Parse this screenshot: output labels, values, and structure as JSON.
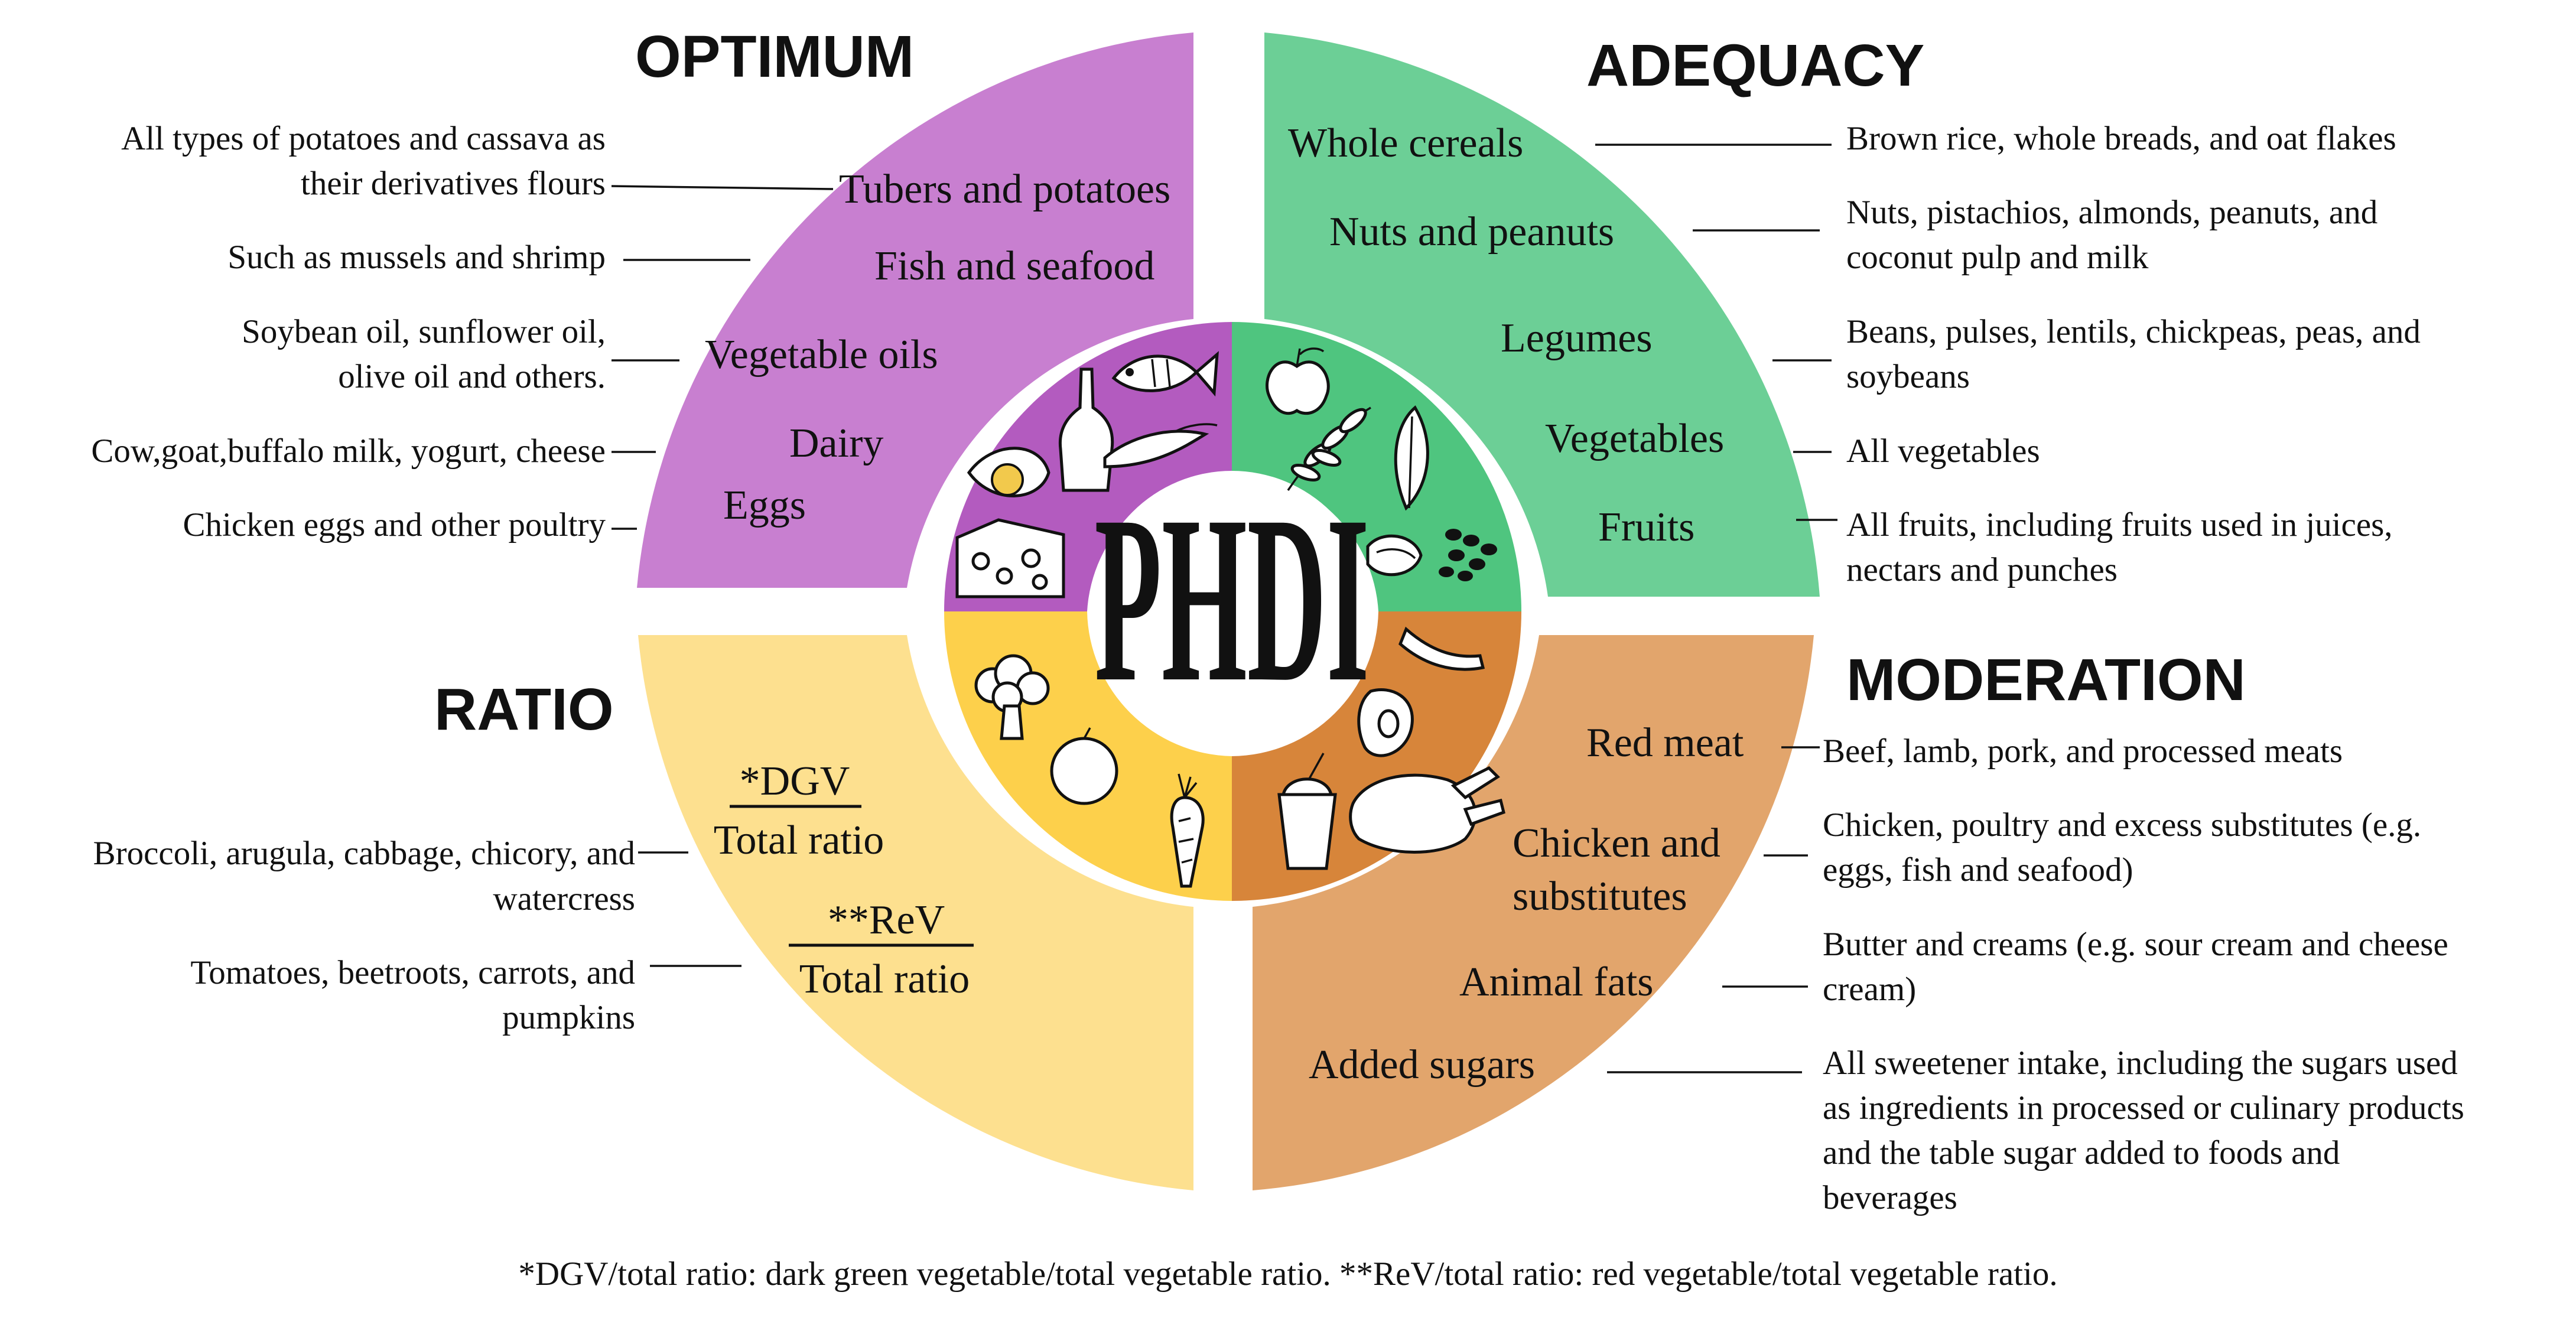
{
  "center": {
    "title": "PHDI"
  },
  "colors": {
    "optimum_outer": "#c87fd0",
    "optimum_inner": "#b35bbf",
    "adequacy_outer": "#6ccf96",
    "adequacy_inner": "#4fc57f",
    "moderation_outer": "#e2a56c",
    "moderation_inner": "#d7853a",
    "ratio_outer": "#fde08f",
    "ratio_inner": "#fdd04b"
  },
  "optimum": {
    "title": "OPTIMUM",
    "categories": [
      "Tubers and potatoes",
      "Fish and seafood",
      "Vegetable oils",
      "Dairy",
      "Eggs"
    ],
    "notes": {
      "tubers_1": "All types of potatoes and cassava as",
      "tubers_2": "their derivatives flours",
      "fish": "Such as mussels and shrimp",
      "oils_1": "Soybean oil, sunflower oil,",
      "oils_2": "olive oil and others.",
      "dairy": "Cow,goat,buffalo milk, yogurt, cheese",
      "eggs": "Chicken eggs and other poultry"
    }
  },
  "adequacy": {
    "title": "ADEQUACY",
    "categories": [
      "Whole cereals",
      "Nuts and peanuts",
      "Legumes",
      "Vegetables",
      "Fruits"
    ],
    "notes": {
      "cereals": "Brown rice, whole breads, and oat flakes",
      "nuts_1": "Nuts, pistachios, almonds, peanuts, and",
      "nuts_2": "coconut pulp and milk",
      "legumes_1": "Beans, pulses, lentils, chickpeas, peas, and",
      "legumes_2": "soybeans",
      "vegetables": "All vegetables",
      "fruits_1": "All fruits, including fruits used in juices,",
      "fruits_2": "nectars and punches"
    }
  },
  "moderation": {
    "title": "MODERATION",
    "categories": [
      "Red meat",
      "Chicken and",
      "substitutes",
      "Animal fats",
      "Added sugars"
    ],
    "notes": {
      "redmeat": "Beef, lamb, pork, and processed meats",
      "chicken_1": "Chicken, poultry and excess substitutes (e.g.",
      "chicken_2": "eggs, fish and seafood)",
      "fats_1": "Butter and creams (e.g. sour cream and cheese",
      "fats_2": "cream)",
      "sugars_1": "All sweetener intake, including the sugars used",
      "sugars_2": "as ingredients in processed or culinary products",
      "sugars_3": "and the table sugar added to foods and",
      "sugars_4": "beverages"
    }
  },
  "ratio": {
    "title": "RATIO",
    "dgv_num": "*DGV",
    "dgv_den": "Total ratio",
    "rev_num": "**ReV",
    "rev_den": "Total ratio",
    "notes": {
      "dgv_1": "Broccoli, arugula, cabbage, chicory, and",
      "dgv_2": "watercress",
      "rev_1": "Tomatoes, beetroots, carrots, and",
      "rev_2": "pumpkins"
    }
  },
  "footnote": "*DGV/total ratio: dark green vegetable/total vegetable ratio. **ReV/total ratio: red vegetable/total vegetable ratio.",
  "icons": [
    "fish-icon",
    "bottle-icon",
    "shrimp-icon",
    "egg-icon",
    "cheese-icon",
    "apple-icon",
    "wheat-icon",
    "leaf-icon",
    "nut-icon",
    "beans-icon",
    "sausage-icon",
    "steak-icon",
    "chicken-icon",
    "drink-icon",
    "broccoli-icon",
    "tomato-icon",
    "carrot-icon"
  ]
}
